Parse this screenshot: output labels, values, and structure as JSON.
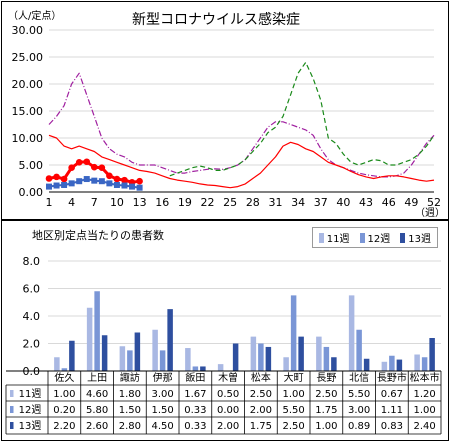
{
  "colors": {
    "prev_year": "#ff0000",
    "three_years_ago": "#a020a0",
    "two_years_ago": "#1a8a1a",
    "current_line": "#ff0000",
    "current_marker": "#ff0000",
    "current_blue": "#3a66c4",
    "grid": "#d9d9d9",
    "week11": "#a9b8e3",
    "week12": "#7a96d6",
    "week13": "#2e4f9f"
  },
  "chart_data": [
    {
      "type": "line",
      "title": "新型コロナウイルス感染症",
      "ylabel": "（人/定点）",
      "xlabel": "（週）",
      "ylim": [
        0,
        30
      ],
      "yticks": [
        "0.00",
        "5.00",
        "10.00",
        "15.00",
        "20.00",
        "25.00",
        "30.00"
      ],
      "xticks": [
        1,
        4,
        7,
        10,
        13,
        16,
        19,
        22,
        25,
        28,
        31,
        34,
        37,
        40,
        43,
        46,
        49,
        52
      ],
      "xlim": [
        1,
        52
      ],
      "grid": true,
      "series": [
        {
          "key": "purple",
          "style": "dash-dot",
          "x": [
            1,
            2,
            3,
            4,
            5,
            6,
            7,
            8,
            9,
            10,
            11,
            12,
            13,
            14,
            15,
            16,
            17,
            18,
            19,
            20,
            21,
            22,
            23,
            24,
            25,
            26,
            27,
            28,
            29,
            30,
            31,
            32,
            33,
            34,
            35,
            36,
            37,
            38,
            39,
            40,
            41,
            42,
            43,
            44,
            45,
            46,
            47,
            48,
            49,
            50,
            51,
            52
          ],
          "values": [
            12.5,
            14,
            16,
            20,
            22,
            18,
            14,
            10,
            8,
            7,
            6.5,
            5.5,
            5,
            5,
            5,
            4.5,
            4,
            3.5,
            3.5,
            3.8,
            4,
            4.2,
            4.3,
            4.2,
            4.5,
            5,
            6,
            8,
            10,
            12,
            13,
            13,
            12.5,
            12,
            11.5,
            10.5,
            8,
            6,
            5,
            4.5,
            4,
            3.5,
            3.2,
            3,
            2.8,
            2.8,
            3,
            3.5,
            5,
            7,
            9,
            10.5
          ]
        },
        {
          "key": "green",
          "style": "dash",
          "x": [
            17,
            18,
            19,
            20,
            21,
            22,
            23,
            24,
            25,
            26,
            27,
            28,
            29,
            30,
            31,
            32,
            33,
            34,
            35,
            36,
            37,
            38,
            39,
            40,
            41,
            42,
            43,
            44,
            45,
            46,
            47,
            48,
            49,
            50,
            51,
            52
          ],
          "values": [
            3,
            3.5,
            4,
            4.5,
            4.8,
            4.5,
            4,
            4,
            4.5,
            5,
            6,
            7.5,
            9,
            11,
            12,
            14,
            18,
            22,
            24,
            21,
            17,
            10,
            9,
            7,
            5.5,
            5,
            5.5,
            6,
            5.8,
            5,
            5,
            5.5,
            6,
            7,
            8.5,
            10.5
          ]
        },
        {
          "key": "red",
          "style": "solid",
          "x": [
            1,
            2,
            3,
            4,
            5,
            6,
            7,
            8,
            9,
            10,
            11,
            12,
            13,
            14,
            15,
            16,
            17,
            18,
            19,
            20,
            21,
            22,
            23,
            24,
            25,
            26,
            27,
            28,
            29,
            30,
            31,
            32,
            33,
            34,
            35,
            36,
            37,
            38,
            39,
            40,
            41,
            42,
            43,
            44,
            45,
            46,
            47,
            48,
            49,
            50,
            51,
            52
          ],
          "values": [
            10.5,
            10,
            8.5,
            8,
            8.5,
            8,
            7.5,
            6.5,
            6,
            5.5,
            5,
            4.5,
            4,
            3.8,
            3.5,
            3,
            2.5,
            2.2,
            2,
            1.8,
            1.5,
            1.3,
            1.2,
            1,
            0.8,
            1,
            1.5,
            2.5,
            3.5,
            5,
            6.5,
            8.5,
            9.2,
            8.8,
            8,
            7.5,
            6.5,
            5.5,
            5,
            4.5,
            3.8,
            3.2,
            2.8,
            2.5,
            2.8,
            3,
            3,
            2.8,
            2.5,
            2.2,
            2,
            2.2
          ]
        },
        {
          "key": "current",
          "style": "bold-marker",
          "x": [
            1,
            2,
            3,
            4,
            5,
            6,
            7,
            8,
            9,
            10,
            11,
            12,
            13
          ],
          "values": [
            2.5,
            2.8,
            2.4,
            4.5,
            5.5,
            5.6,
            4.6,
            4.5,
            3,
            2.4,
            2.2,
            1.8,
            2
          ]
        },
        {
          "key": "current_blue",
          "style": "square-marker",
          "x": [
            1,
            2,
            3,
            4,
            5,
            6,
            7,
            8,
            9,
            10,
            11,
            12,
            13
          ],
          "values": [
            1,
            1.2,
            1.3,
            1.6,
            2,
            2.4,
            2.1,
            2,
            1.6,
            1.3,
            1.2,
            1,
            0.8
          ]
        }
      ]
    },
    {
      "type": "bar",
      "title": "地区別定点当たりの患者数",
      "ylim": [
        0,
        8
      ],
      "yticks": [
        "0.0",
        "2.0",
        "4.0",
        "6.0",
        "8.0"
      ],
      "grid": true,
      "legend": "top-right",
      "categories": [
        "佐久",
        "上田",
        "諏訪",
        "伊那",
        "飯田",
        "木曽",
        "松本",
        "大町",
        "長野",
        "北信",
        "長野市",
        "松本市"
      ],
      "series": [
        {
          "name": "11週",
          "values": [
            1.0,
            4.6,
            1.8,
            3.0,
            1.67,
            0.5,
            2.5,
            1.0,
            2.5,
            5.5,
            0.67,
            1.2
          ]
        },
        {
          "name": "12週",
          "values": [
            0.2,
            5.8,
            1.5,
            1.5,
            0.33,
            0.0,
            2.0,
            5.5,
            1.75,
            3.0,
            1.11,
            1.0
          ]
        },
        {
          "name": "13週",
          "values": [
            2.2,
            2.6,
            2.8,
            4.5,
            0.33,
            2.0,
            1.75,
            2.5,
            1.0,
            0.89,
            0.83,
            2.4
          ]
        }
      ],
      "table": {
        "row_labels": [
          "11週",
          "12週",
          "13週"
        ],
        "rows": [
          [
            "1.00",
            "4.60",
            "1.80",
            "3.00",
            "1.67",
            "0.50",
            "2.50",
            "1.00",
            "2.50",
            "5.50",
            "0.67",
            "1.20"
          ],
          [
            "0.20",
            "5.80",
            "1.50",
            "1.50",
            "0.33",
            "0.00",
            "2.00",
            "5.50",
            "1.75",
            "3.00",
            "1.11",
            "1.00"
          ],
          [
            "2.20",
            "2.60",
            "2.80",
            "4.50",
            "0.33",
            "2.00",
            "1.75",
            "2.50",
            "1.00",
            "0.89",
            "0.83",
            "2.40"
          ]
        ]
      }
    }
  ]
}
